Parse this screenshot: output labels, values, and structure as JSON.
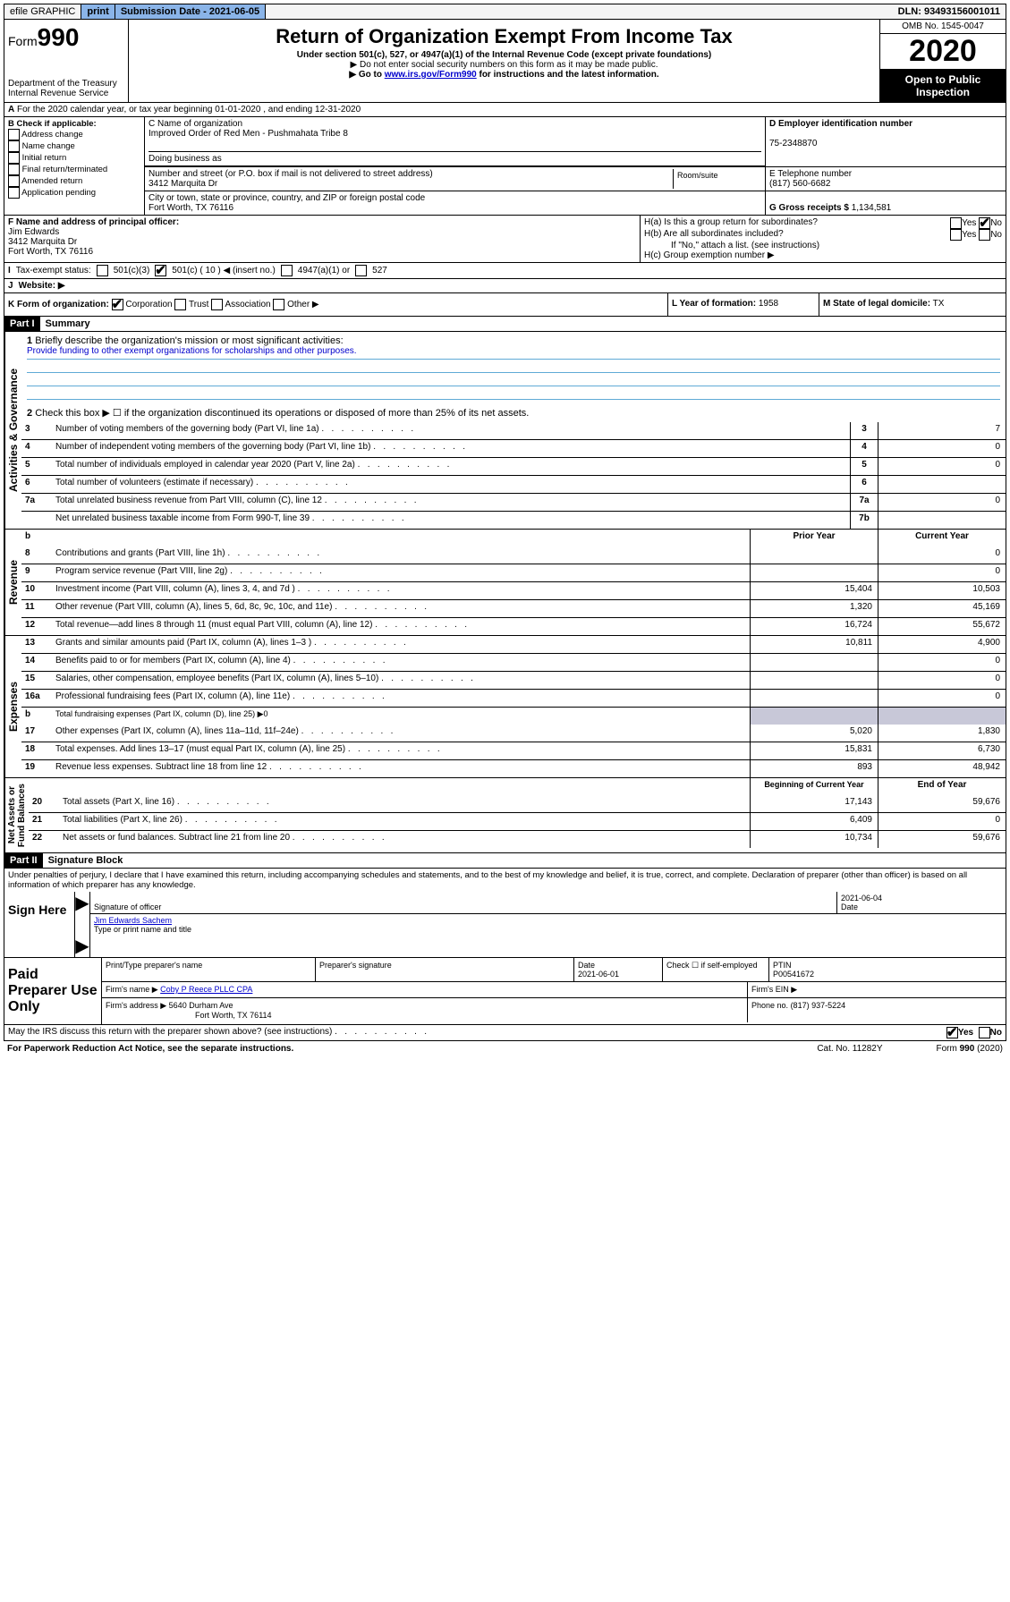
{
  "topbar": {
    "efile": "efile GRAPHIC",
    "print": "print",
    "subdate_label": "Submission Date - 2021-06-05",
    "dln": "DLN: 93493156001011"
  },
  "header": {
    "form_prefix": "Form",
    "form_no": "990",
    "dept": "Department of the Treasury\nInternal Revenue Service",
    "title": "Return of Organization Exempt From Income Tax",
    "sub1": "Under section 501(c), 527, or 4947(a)(1) of the Internal Revenue Code (except private foundations)",
    "sub2": "▶ Do not enter social security numbers on this form as it may be made public.",
    "sub3_pre": "▶ Go to ",
    "sub3_link": "www.irs.gov/Form990",
    "sub3_post": " for instructions and the latest information.",
    "omb": "OMB No. 1545-0047",
    "year": "2020",
    "open": "Open to Public Inspection"
  },
  "rowA": "For the 2020 calendar year, or tax year beginning 01-01-2020    , and ending 12-31-2020",
  "boxB": {
    "label": "B Check if applicable:",
    "opts": [
      "Address change",
      "Name change",
      "Initial return",
      "Final return/terminated",
      "Amended return",
      "Application pending"
    ]
  },
  "boxC": {
    "name_label": "C Name of organization",
    "name": "Improved Order of Red Men - Pushmahata Tribe 8",
    "dba_label": "Doing business as",
    "addr_label": "Number and street (or P.O. box if mail is not delivered to street address)",
    "room_label": "Room/suite",
    "addr": "3412 Marquita Dr",
    "city_label": "City or town, state or province, country, and ZIP or foreign postal code",
    "city": "Fort Worth, TX  76116"
  },
  "boxD": {
    "label": "D Employer identification number",
    "value": "75-2348870"
  },
  "boxE": {
    "label": "E Telephone number",
    "value": "(817) 560-6682"
  },
  "boxG": {
    "label": "G Gross receipts $",
    "value": "1,134,581"
  },
  "boxF": {
    "label": "F Name and address of principal officer:",
    "name": "Jim Edwards",
    "addr1": "3412 Marquita Dr",
    "addr2": "Fort Worth, TX  76116"
  },
  "boxH": {
    "a": "H(a)  Is this a group return for subordinates?",
    "b": "H(b)  Are all subordinates included?",
    "b_note": "If \"No,\" attach a list. (see instructions)",
    "c": "H(c)  Group exemption number ▶",
    "yes": "Yes",
    "no": "No"
  },
  "boxI": {
    "label": "Tax-exempt status:",
    "opts": [
      "501(c)(3)",
      "501(c) ( 10 ) ◀ (insert no.)",
      "4947(a)(1) or",
      "527"
    ]
  },
  "boxJ": {
    "label": "Website: ▶"
  },
  "boxK": {
    "label": "K Form of organization:",
    "opts": [
      "Corporation",
      "Trust",
      "Association",
      "Other ▶"
    ]
  },
  "boxL": {
    "label": "L Year of formation:",
    "value": "1958"
  },
  "boxM": {
    "label": "M State of legal domicile:",
    "value": "TX"
  },
  "part1": {
    "hdr": "Part I",
    "title": "Summary",
    "l1": "Briefly describe the organization's mission or most significant activities:",
    "mission": "Provide funding to other exempt organizations for scholarships and other purposes.",
    "l2": "Check this box ▶ ☐  if the organization discontinued its operations or disposed of more than 25% of its net assets.",
    "lines_top": [
      {
        "no": "3",
        "text": "Number of voting members of the governing body (Part VI, line 1a)",
        "cell": "3",
        "val": "7"
      },
      {
        "no": "4",
        "text": "Number of independent voting members of the governing body (Part VI, line 1b)",
        "cell": "4",
        "val": "0"
      },
      {
        "no": "5",
        "text": "Total number of individuals employed in calendar year 2020 (Part V, line 2a)",
        "cell": "5",
        "val": "0"
      },
      {
        "no": "6",
        "text": "Total number of volunteers (estimate if necessary)",
        "cell": "6",
        "val": ""
      },
      {
        "no": "7a",
        "text": "Total unrelated business revenue from Part VIII, column (C), line 12",
        "cell": "7a",
        "val": "0"
      },
      {
        "no": "",
        "text": "Net unrelated business taxable income from Form 990-T, line 39",
        "cell": "7b",
        "val": ""
      }
    ],
    "hdr_prior": "Prior Year",
    "hdr_curr": "Current Year",
    "rev_lines": [
      {
        "no": "8",
        "text": "Contributions and grants (Part VIII, line 1h)",
        "p": "",
        "c": "0"
      },
      {
        "no": "9",
        "text": "Program service revenue (Part VIII, line 2g)",
        "p": "",
        "c": "0"
      },
      {
        "no": "10",
        "text": "Investment income (Part VIII, column (A), lines 3, 4, and 7d )",
        "p": "15,404",
        "c": "10,503"
      },
      {
        "no": "11",
        "text": "Other revenue (Part VIII, column (A), lines 5, 6d, 8c, 9c, 10c, and 11e)",
        "p": "1,320",
        "c": "45,169"
      },
      {
        "no": "12",
        "text": "Total revenue—add lines 8 through 11 (must equal Part VIII, column (A), line 12)",
        "p": "16,724",
        "c": "55,672"
      }
    ],
    "exp_lines": [
      {
        "no": "13",
        "text": "Grants and similar amounts paid (Part IX, column (A), lines 1–3 )",
        "p": "10,811",
        "c": "4,900"
      },
      {
        "no": "14",
        "text": "Benefits paid to or for members (Part IX, column (A), line 4)",
        "p": "",
        "c": "0"
      },
      {
        "no": "15",
        "text": "Salaries, other compensation, employee benefits (Part IX, column (A), lines 5–10)",
        "p": "",
        "c": "0"
      },
      {
        "no": "16a",
        "text": "Professional fundraising fees (Part IX, column (A), line 11e)",
        "p": "",
        "c": "0"
      }
    ],
    "exp_b": {
      "no": "b",
      "text": "Total fundraising expenses (Part IX, column (D), line 25) ▶0"
    },
    "exp_lines2": [
      {
        "no": "17",
        "text": "Other expenses (Part IX, column (A), lines 11a–11d, 11f–24e)",
        "p": "5,020",
        "c": "1,830"
      },
      {
        "no": "18",
        "text": "Total expenses. Add lines 13–17 (must equal Part IX, column (A), line 25)",
        "p": "15,831",
        "c": "6,730"
      },
      {
        "no": "19",
        "text": "Revenue less expenses. Subtract line 18 from line 12",
        "p": "893",
        "c": "48,942"
      }
    ],
    "hdr_begin": "Beginning of Current Year",
    "hdr_end": "End of Year",
    "net_lines": [
      {
        "no": "20",
        "text": "Total assets (Part X, line 16)",
        "p": "17,143",
        "c": "59,676"
      },
      {
        "no": "21",
        "text": "Total liabilities (Part X, line 26)",
        "p": "6,409",
        "c": "0"
      },
      {
        "no": "22",
        "text": "Net assets or fund balances. Subtract line 21 from line 20",
        "p": "10,734",
        "c": "59,676"
      }
    ],
    "sides": {
      "gov": "Activities & Governance",
      "rev": "Revenue",
      "exp": "Expenses",
      "net": "Net Assets or\nFund Balances"
    }
  },
  "part2": {
    "hdr": "Part II",
    "title": "Signature Block",
    "perjury": "Under penalties of perjury, I declare that I have examined this return, including accompanying schedules and statements, and to the best of my knowledge and belief, it is true, correct, and complete. Declaration of preparer (other than officer) is based on all information of which preparer has any knowledge.",
    "sign_here": "Sign Here",
    "sig_officer": "Signature of officer",
    "sig_date": "2021-06-04",
    "date_label": "Date",
    "name_title": "Jim Edwards  Sachem",
    "type_name": "Type or print name and title"
  },
  "prep": {
    "label": "Paid Preparer Use Only",
    "h1": "Print/Type preparer's name",
    "h2": "Preparer's signature",
    "h3": "Date",
    "h3v": "2021-06-01",
    "h4": "Check ☐ if self-employed",
    "h5": "PTIN",
    "ptin": "P00541672",
    "firm_name_l": "Firm's name    ▶",
    "firm_name": "Coby P Reece PLLC CPA",
    "firm_ein_l": "Firm's EIN ▶",
    "firm_addr_l": "Firm's address ▶",
    "firm_addr1": "5640 Durham Ave",
    "firm_addr2": "Fort Worth, TX  76114",
    "phone_l": "Phone no.",
    "phone": "(817) 937-5224"
  },
  "footer": {
    "discuss": "May the IRS discuss this return with the preparer shown above? (see instructions)",
    "yes": "Yes",
    "no": "No",
    "paperwork": "For Paperwork Reduction Act Notice, see the separate instructions.",
    "cat": "Cat. No. 11282Y",
    "form": "Form 990 (2020)"
  }
}
